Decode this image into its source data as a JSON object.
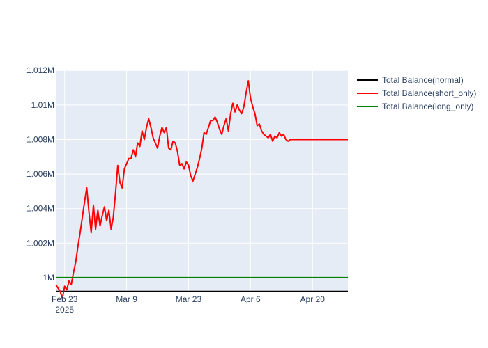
{
  "chart_data": {
    "type": "line",
    "title": "",
    "xlabel": "",
    "ylabel": "",
    "x_range": [
      "2025-02-21",
      "2025-04-28"
    ],
    "ylim": [
      999150,
      1012050
    ],
    "grid": true,
    "plot_background": "#e5ecf6",
    "legend_position": "top-right",
    "x_ticks": [
      {
        "date": "2025-02-23",
        "label": "Feb 23",
        "sublabel": "2025"
      },
      {
        "date": "2025-03-09",
        "label": "Mar 9",
        "sublabel": ""
      },
      {
        "date": "2025-03-23",
        "label": "Mar 23",
        "sublabel": ""
      },
      {
        "date": "2025-04-06",
        "label": "Apr 6",
        "sublabel": ""
      },
      {
        "date": "2025-04-20",
        "label": "Apr 20",
        "sublabel": ""
      }
    ],
    "y_ticks": [
      {
        "value": 1000000,
        "label": "1M"
      },
      {
        "value": 1002000,
        "label": "1.002M"
      },
      {
        "value": 1004000,
        "label": "1.004M"
      },
      {
        "value": 1006000,
        "label": "1.006M"
      },
      {
        "value": 1008000,
        "label": "1.008M"
      },
      {
        "value": 1010000,
        "label": "1.01M"
      },
      {
        "value": 1012000,
        "label": "1.012M"
      }
    ],
    "series": [
      {
        "name": "Total Balance(normal)",
        "color": "#000000",
        "points": [
          [
            "2025-02-21",
            999200
          ],
          [
            "2025-04-28",
            999200
          ]
        ]
      },
      {
        "name": "Total Balance(short_only)",
        "color": "#ff0000",
        "points": [
          [
            "2025-02-21",
            999600
          ],
          [
            "2025-02-22",
            999200
          ],
          [
            "2025-02-22 12:00",
            998800
          ],
          [
            "2025-02-23",
            999500
          ],
          [
            "2025-02-23 12:00",
            999300
          ],
          [
            "2025-02-24",
            999800
          ],
          [
            "2025-02-24 12:00",
            999600
          ],
          [
            "2025-02-25",
            1000300
          ],
          [
            "2025-02-25 12:00",
            1000900
          ],
          [
            "2025-02-26",
            1001800
          ],
          [
            "2025-02-26 12:00",
            1002600
          ],
          [
            "2025-02-27",
            1003500
          ],
          [
            "2025-02-27 12:00",
            1004400
          ],
          [
            "2025-02-28",
            1005200
          ],
          [
            "2025-02-28 12:00",
            1003800
          ],
          [
            "2025-03-01",
            1002600
          ],
          [
            "2025-03-01 12:00",
            1004200
          ],
          [
            "2025-03-02",
            1002800
          ],
          [
            "2025-03-02 12:00",
            1003900
          ],
          [
            "2025-03-03",
            1003000
          ],
          [
            "2025-03-03 12:00",
            1003600
          ],
          [
            "2025-03-04",
            1004100
          ],
          [
            "2025-03-04 12:00",
            1003300
          ],
          [
            "2025-03-05",
            1003900
          ],
          [
            "2025-03-05 12:00",
            1002800
          ],
          [
            "2025-03-06",
            1003500
          ],
          [
            "2025-03-06 12:00",
            1004900
          ],
          [
            "2025-03-07",
            1006500
          ],
          [
            "2025-03-07 12:00",
            1005500
          ],
          [
            "2025-03-08",
            1005200
          ],
          [
            "2025-03-08 12:00",
            1006300
          ],
          [
            "2025-03-09",
            1006600
          ],
          [
            "2025-03-09 12:00",
            1006900
          ],
          [
            "2025-03-10",
            1006900
          ],
          [
            "2025-03-10 12:00",
            1007400
          ],
          [
            "2025-03-11",
            1007000
          ],
          [
            "2025-03-11 12:00",
            1007800
          ],
          [
            "2025-03-12",
            1007600
          ],
          [
            "2025-03-12 12:00",
            1008500
          ],
          [
            "2025-03-13",
            1008000
          ],
          [
            "2025-03-13 12:00",
            1008700
          ],
          [
            "2025-03-14",
            1009200
          ],
          [
            "2025-03-14 12:00",
            1008700
          ],
          [
            "2025-03-15",
            1008100
          ],
          [
            "2025-03-15 12:00",
            1007800
          ],
          [
            "2025-03-16",
            1007500
          ],
          [
            "2025-03-16 12:00",
            1008200
          ],
          [
            "2025-03-17",
            1008700
          ],
          [
            "2025-03-17 12:00",
            1008400
          ],
          [
            "2025-03-18",
            1008700
          ],
          [
            "2025-03-18 12:00",
            1007500
          ],
          [
            "2025-03-19",
            1007400
          ],
          [
            "2025-03-19 12:00",
            1007900
          ],
          [
            "2025-03-20",
            1007800
          ],
          [
            "2025-03-20 12:00",
            1007300
          ],
          [
            "2025-03-21",
            1006500
          ],
          [
            "2025-03-21 12:00",
            1006600
          ],
          [
            "2025-03-22",
            1006300
          ],
          [
            "2025-03-22 12:00",
            1006700
          ],
          [
            "2025-03-23",
            1006500
          ],
          [
            "2025-03-23 12:00",
            1005900
          ],
          [
            "2025-03-24",
            1005600
          ],
          [
            "2025-03-24 12:00",
            1006000
          ],
          [
            "2025-03-25",
            1006400
          ],
          [
            "2025-03-25 12:00",
            1006900
          ],
          [
            "2025-03-26",
            1007500
          ],
          [
            "2025-03-26 12:00",
            1008400
          ],
          [
            "2025-03-27",
            1008300
          ],
          [
            "2025-03-27 12:00",
            1008700
          ],
          [
            "2025-03-28",
            1009100
          ],
          [
            "2025-03-28 12:00",
            1009100
          ],
          [
            "2025-03-29",
            1009300
          ],
          [
            "2025-03-29 12:00",
            1009000
          ],
          [
            "2025-03-30",
            1008600
          ],
          [
            "2025-03-30 12:00",
            1008300
          ],
          [
            "2025-03-31",
            1008800
          ],
          [
            "2025-03-31 12:00",
            1009200
          ],
          [
            "2025-04-01",
            1008500
          ],
          [
            "2025-04-01 12:00",
            1009500
          ],
          [
            "2025-04-02",
            1010100
          ],
          [
            "2025-04-02 12:00",
            1009600
          ],
          [
            "2025-04-03",
            1010000
          ],
          [
            "2025-04-03 12:00",
            1009700
          ],
          [
            "2025-04-04",
            1009500
          ],
          [
            "2025-04-04 12:00",
            1009900
          ],
          [
            "2025-04-05",
            1010700
          ],
          [
            "2025-04-05 12:00",
            1011400
          ],
          [
            "2025-04-06",
            1010400
          ],
          [
            "2025-04-06 12:00",
            1009900
          ],
          [
            "2025-04-07",
            1009500
          ],
          [
            "2025-04-07 12:00",
            1008800
          ],
          [
            "2025-04-08",
            1008900
          ],
          [
            "2025-04-08 12:00",
            1008500
          ],
          [
            "2025-04-09",
            1008300
          ],
          [
            "2025-04-09 12:00",
            1008200
          ],
          [
            "2025-04-10",
            1008100
          ],
          [
            "2025-04-10 12:00",
            1008300
          ],
          [
            "2025-04-11",
            1007900
          ],
          [
            "2025-04-11 12:00",
            1008200
          ],
          [
            "2025-04-12",
            1008100
          ],
          [
            "2025-04-12 12:00",
            1008400
          ],
          [
            "2025-04-13",
            1008200
          ],
          [
            "2025-04-13 12:00",
            1008300
          ],
          [
            "2025-04-14",
            1008000
          ],
          [
            "2025-04-14 12:00",
            1007900
          ],
          [
            "2025-04-15",
            1008000
          ],
          [
            "2025-04-28",
            1008000
          ]
        ]
      },
      {
        "name": "Total Balance(long_only)",
        "color": "#008000",
        "points": [
          [
            "2025-02-21",
            1000000
          ],
          [
            "2025-04-28",
            1000000
          ]
        ]
      }
    ]
  }
}
